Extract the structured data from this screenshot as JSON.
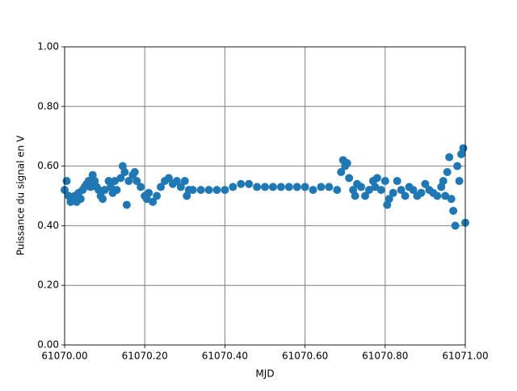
{
  "chart_data": {
    "type": "scatter",
    "xlabel": "MJD",
    "ylabel": "Puissance du signal en V",
    "xlim": [
      61070,
      61071
    ],
    "xticks": [
      {
        "value": 61070,
        "label": "61070.00"
      },
      {
        "value": 61070.2,
        "label": "61070.20"
      },
      {
        "value": 61070.4,
        "label": "61070.40"
      },
      {
        "value": 61070.6,
        "label": "61070.60"
      },
      {
        "value": 61070.8,
        "label": "61070.80"
      },
      {
        "value": 61071,
        "label": "61071.00"
      }
    ],
    "ylim": [
      0,
      1
    ],
    "yticks": [
      {
        "value": 0,
        "label": "0.00"
      },
      {
        "value": 0.2,
        "label": "0.20"
      },
      {
        "value": 0.4,
        "label": "0.40"
      },
      {
        "value": 0.6,
        "label": "0.60"
      },
      {
        "value": 0.8,
        "label": "0.80"
      },
      {
        "value": 1,
        "label": "1.00"
      }
    ],
    "grid": true,
    "color": "#1f77b4",
    "x": [
      61070.0,
      61070.005,
      61070.01,
      61070.015,
      61070.02,
      61070.025,
      61070.03,
      61070.035,
      61070.04,
      61070.045,
      61070.05,
      61070.055,
      61070.06,
      61070.065,
      61070.07,
      61070.075,
      61070.08,
      61070.085,
      61070.09,
      61070.095,
      61070.1,
      61070.11,
      61070.115,
      61070.12,
      61070.125,
      61070.13,
      61070.14,
      61070.145,
      61070.15,
      61070.155,
      61070.16,
      61070.17,
      61070.175,
      61070.18,
      61070.19,
      61070.2,
      61070.205,
      61070.21,
      61070.22,
      61070.23,
      61070.24,
      61070.25,
      61070.26,
      61070.27,
      61070.28,
      61070.29,
      61070.3,
      61070.305,
      61070.31,
      61070.32,
      61070.34,
      61070.36,
      61070.38,
      61070.4,
      61070.42,
      61070.44,
      61070.46,
      61070.48,
      61070.5,
      61070.52,
      61070.54,
      61070.56,
      61070.58,
      61070.6,
      61070.62,
      61070.64,
      61070.66,
      61070.68,
      61070.69,
      61070.695,
      61070.7,
      61070.705,
      61070.71,
      61070.72,
      61070.725,
      61070.73,
      61070.74,
      61070.75,
      61070.76,
      61070.77,
      61070.775,
      61070.78,
      61070.79,
      61070.8,
      61070.805,
      61070.81,
      61070.82,
      61070.83,
      61070.84,
      61070.85,
      61070.86,
      61070.87,
      61070.88,
      61070.89,
      61070.9,
      61070.91,
      61070.92,
      61070.93,
      61070.94,
      61070.945,
      61070.95,
      61070.955,
      61070.96,
      61070.965,
      61070.97,
      61070.975,
      61070.98,
      61070.985,
      61070.99,
      61070.995,
      61071.0
    ],
    "values": [
      0.52,
      0.55,
      0.5,
      0.48,
      0.49,
      0.5,
      0.48,
      0.51,
      0.49,
      0.52,
      0.53,
      0.54,
      0.55,
      0.53,
      0.57,
      0.55,
      0.53,
      0.52,
      0.5,
      0.49,
      0.52,
      0.55,
      0.53,
      0.51,
      0.55,
      0.52,
      0.56,
      0.6,
      0.58,
      0.47,
      0.55,
      0.57,
      0.58,
      0.55,
      0.53,
      0.5,
      0.49,
      0.51,
      0.48,
      0.5,
      0.53,
      0.55,
      0.56,
      0.54,
      0.55,
      0.53,
      0.55,
      0.5,
      0.52,
      0.52,
      0.52,
      0.52,
      0.52,
      0.52,
      0.53,
      0.54,
      0.54,
      0.53,
      0.53,
      0.53,
      0.53,
      0.53,
      0.53,
      0.53,
      0.52,
      0.53,
      0.53,
      0.52,
      0.58,
      0.62,
      0.6,
      0.61,
      0.56,
      0.52,
      0.5,
      0.54,
      0.53,
      0.5,
      0.52,
      0.55,
      0.53,
      0.56,
      0.52,
      0.55,
      0.47,
      0.49,
      0.51,
      0.55,
      0.52,
      0.5,
      0.53,
      0.52,
      0.5,
      0.51,
      0.54,
      0.52,
      0.51,
      0.5,
      0.53,
      0.55,
      0.5,
      0.58,
      0.63,
      0.49,
      0.45,
      0.4,
      0.6,
      0.55,
      0.64,
      0.66,
      0.41
    ]
  }
}
